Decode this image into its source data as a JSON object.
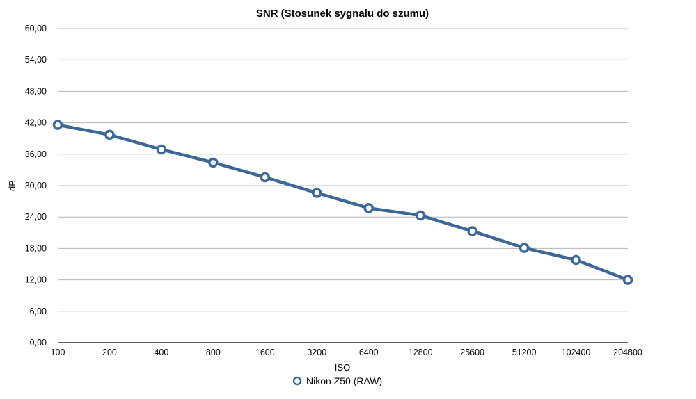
{
  "chart_data": {
    "type": "line",
    "title": "SNR (Stosunek sygnału do szumu)",
    "xlabel": "ISO",
    "ylabel": "dB",
    "categories": [
      "100",
      "200",
      "400",
      "800",
      "1600",
      "3200",
      "6400",
      "12800",
      "25600",
      "51200",
      "102400",
      "204800"
    ],
    "series": [
      {
        "name": "Nikon Z50 (RAW)",
        "color": "#3d6797",
        "values": [
          41.6,
          39.7,
          36.9,
          34.4,
          31.6,
          28.6,
          25.7,
          24.3,
          21.3,
          18.1,
          15.8,
          12.0
        ]
      }
    ],
    "ylim": [
      0,
      60
    ],
    "yticks": [
      "0,00",
      "6,00",
      "12,00",
      "18,00",
      "24,00",
      "30,00",
      "36,00",
      "42,00",
      "48,00",
      "54,00",
      "60,00"
    ],
    "grid": true,
    "legend": "bottom-center"
  }
}
